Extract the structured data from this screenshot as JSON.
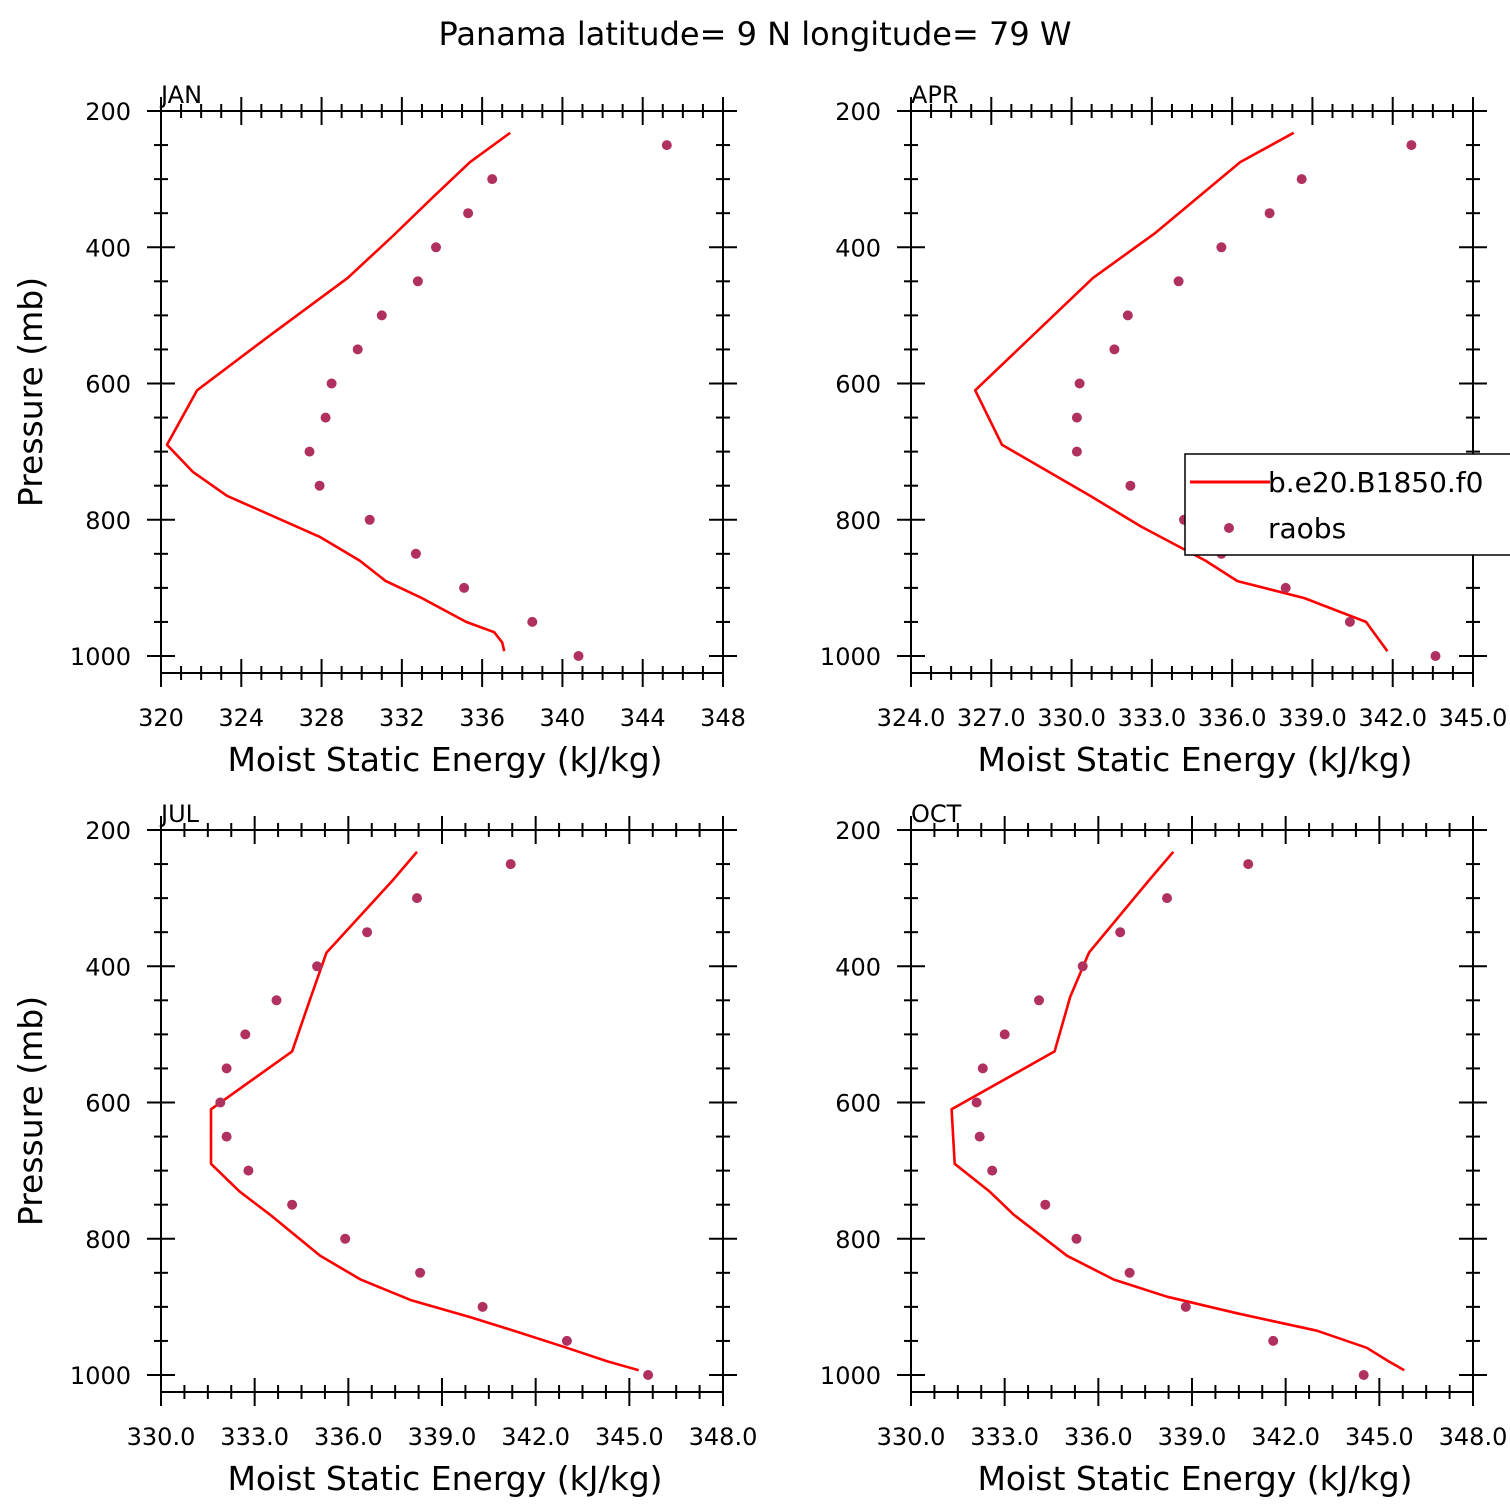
{
  "title": "Panama  latitude= 9 N longitude= 79 W",
  "colors": {
    "model": "#ff0000",
    "obs": "#b03060",
    "axis": "#000000"
  },
  "legend": {
    "model_label": "b.e20.B1850.f0",
    "obs_label": "raobs"
  },
  "chart_data": [
    {
      "type": "line",
      "panel": "JAN",
      "xlabel": "Moist Static Energy (kJ/kg)",
      "ylabel": "Pressure (mb)",
      "xlim": [
        320,
        348
      ],
      "ylim": [
        1000,
        200
      ],
      "xticks": [
        "320",
        "324",
        "328",
        "332",
        "336",
        "340",
        "344",
        "348"
      ],
      "yticks": [
        "200",
        "400",
        "600",
        "800",
        "1000"
      ],
      "series": [
        {
          "name": "b.e20.B1850.f0",
          "style": "line",
          "x": [
            337.4,
            335.4,
            333.6,
            331.5,
            329.3,
            325.4,
            321.8,
            320.3,
            321.6,
            323.3,
            327.9,
            329.9,
            331.2,
            333.0,
            335.2,
            336.6,
            337.0,
            337.1
          ],
          "y": [
            232,
            275,
            325,
            385,
            445,
            530,
            610,
            690,
            730,
            765,
            825,
            860,
            890,
            915,
            950,
            965,
            980,
            993
          ]
        },
        {
          "name": "raobs",
          "style": "markers",
          "x": [
            345.2,
            336.5,
            335.3,
            333.7,
            332.8,
            331.0,
            329.8,
            328.5,
            328.2,
            327.4,
            327.9,
            330.4,
            332.7,
            335.1,
            338.5,
            340.8
          ],
          "y": [
            250,
            300,
            350,
            400,
            450,
            500,
            550,
            600,
            650,
            700,
            750,
            800,
            850,
            900,
            950,
            1000
          ]
        }
      ]
    },
    {
      "type": "line",
      "panel": "APR",
      "xlabel": "Moist Static Energy (kJ/kg)",
      "ylabel": "",
      "xlim": [
        324.0,
        345.0
      ],
      "ylim": [
        1000,
        200
      ],
      "xticks": [
        "324.0",
        "327.0",
        "330.0",
        "333.0",
        "336.0",
        "339.0",
        "342.0",
        "345.0"
      ],
      "yticks": [
        "200",
        "400",
        "600",
        "800",
        "1000"
      ],
      "series": [
        {
          "name": "b.e20.B1850.f0",
          "style": "line",
          "x": [
            338.3,
            336.3,
            333.1,
            330.8,
            326.4,
            327.4,
            330.7,
            332.6,
            335.0,
            336.2,
            338.7,
            341.0,
            341.8
          ],
          "y": [
            232,
            275,
            380,
            445,
            610,
            690,
            765,
            810,
            860,
            890,
            915,
            950,
            993
          ]
        },
        {
          "name": "raobs",
          "style": "markers",
          "x": [
            342.7,
            338.6,
            337.4,
            335.6,
            334.0,
            332.1,
            331.6,
            330.3,
            330.2,
            330.2,
            332.2,
            334.2,
            335.6,
            338.0,
            340.4,
            343.6
          ],
          "y": [
            250,
            300,
            350,
            400,
            450,
            500,
            550,
            600,
            650,
            700,
            750,
            800,
            850,
            900,
            950,
            1000
          ]
        }
      ]
    },
    {
      "type": "line",
      "panel": "JUL",
      "xlabel": "Moist Static Energy (kJ/kg)",
      "ylabel": "Pressure (mb)",
      "xlim": [
        330.0,
        348.0
      ],
      "ylim": [
        1000,
        200
      ],
      "xticks": [
        "330.0",
        "333.0",
        "336.0",
        "339.0",
        "342.0",
        "345.0",
        "348.0"
      ],
      "yticks": [
        "200",
        "400",
        "600",
        "800",
        "1000"
      ],
      "series": [
        {
          "name": "b.e20.B1850.f0",
          "style": "line",
          "x": [
            338.2,
            337.4,
            335.3,
            334.8,
            334.2,
            331.6,
            331.6,
            332.5,
            333.5,
            335.1,
            336.4,
            338.0,
            339.9,
            341.3,
            343.0,
            344.3,
            345.3
          ],
          "y": [
            232,
            275,
            380,
            445,
            525,
            610,
            690,
            730,
            765,
            825,
            860,
            890,
            915,
            935,
            960,
            980,
            993
          ]
        },
        {
          "name": "raobs",
          "style": "markers",
          "x": [
            341.2,
            338.2,
            336.6,
            335.0,
            333.7,
            332.7,
            332.1,
            331.9,
            332.1,
            332.8,
            334.2,
            335.9,
            338.3,
            340.3,
            343.0,
            345.6
          ],
          "y": [
            250,
            300,
            350,
            400,
            450,
            500,
            550,
            600,
            650,
            700,
            750,
            800,
            850,
            900,
            950,
            1000
          ]
        }
      ]
    },
    {
      "type": "line",
      "panel": "OCT",
      "xlabel": "Moist Static Energy (kJ/kg)",
      "ylabel": "",
      "xlim": [
        330.0,
        348.0
      ],
      "ylim": [
        1000,
        200
      ],
      "xticks": [
        "330.0",
        "333.0",
        "336.0",
        "339.0",
        "342.0",
        "345.0",
        "348.0"
      ],
      "yticks": [
        "200",
        "400",
        "600",
        "800",
        "1000"
      ],
      "series": [
        {
          "name": "b.e20.B1850.f0",
          "style": "line",
          "x": [
            338.4,
            337.6,
            335.7,
            335.1,
            334.6,
            331.3,
            331.4,
            332.5,
            333.3,
            335.0,
            336.5,
            338.2,
            340.5,
            343.0,
            344.6,
            345.3,
            345.8
          ],
          "y": [
            232,
            275,
            380,
            445,
            525,
            610,
            690,
            730,
            765,
            825,
            860,
            885,
            910,
            935,
            960,
            980,
            993
          ]
        },
        {
          "name": "raobs",
          "style": "markers",
          "x": [
            340.8,
            338.2,
            336.7,
            335.5,
            334.1,
            333.0,
            332.3,
            332.1,
            332.2,
            332.6,
            334.3,
            335.3,
            337.0,
            338.8,
            341.6,
            344.5
          ],
          "y": [
            250,
            300,
            350,
            400,
            450,
            500,
            550,
            600,
            650,
            700,
            750,
            800,
            850,
            900,
            950,
            1000
          ]
        }
      ]
    }
  ]
}
